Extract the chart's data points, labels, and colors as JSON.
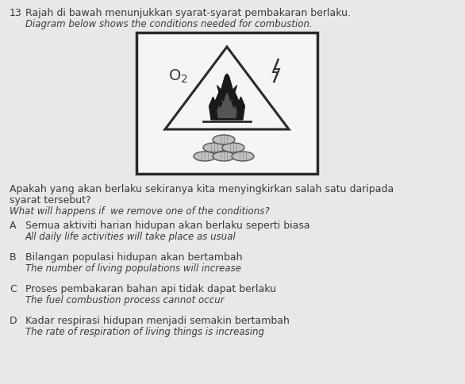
{
  "question_number": "13",
  "title_malay": "Rajah di bawah menunjukkan syarat-syarat pembakaran berlaku.",
  "title_english": "Diagram below shows the conditions needed for combustion.",
  "question_malay_line1": "Apakah yang akan berlaku sekiranya kita menyingkirkan salah satu daripada",
  "question_malay_line2": "syarat tersebut?",
  "question_english": "What will happens if  we remove one of the conditions?",
  "options": [
    {
      "letter": "A",
      "text_malay": "Semua aktiviti harian hidupan akan berlaku seperti biasa",
      "text_english": "All daily life activities will take place as usual"
    },
    {
      "letter": "B",
      "text_malay": "Bilangan populasi hidupan akan bertambah",
      "text_english": "The number of living populations will increase"
    },
    {
      "letter": "C",
      "text_malay": "Proses pembakaran bahan api tidak dapat berlaku",
      "text_english": "The fuel combustion process cannot occur"
    },
    {
      "letter": "D",
      "text_malay": "Kadar respirasi hidupan menjadi semakin bertambah",
      "text_english": "The rate of respiration of living things is increasing"
    }
  ],
  "bg_color": "#e8e8e8",
  "text_color": "#3a3a3a",
  "box_color": "#f5f5f5",
  "box_edge_color": "#2a2a2a",
  "flame_color": "#2a2a2a",
  "log_color": "#c0c0c0",
  "log_edge_color": "#555555"
}
